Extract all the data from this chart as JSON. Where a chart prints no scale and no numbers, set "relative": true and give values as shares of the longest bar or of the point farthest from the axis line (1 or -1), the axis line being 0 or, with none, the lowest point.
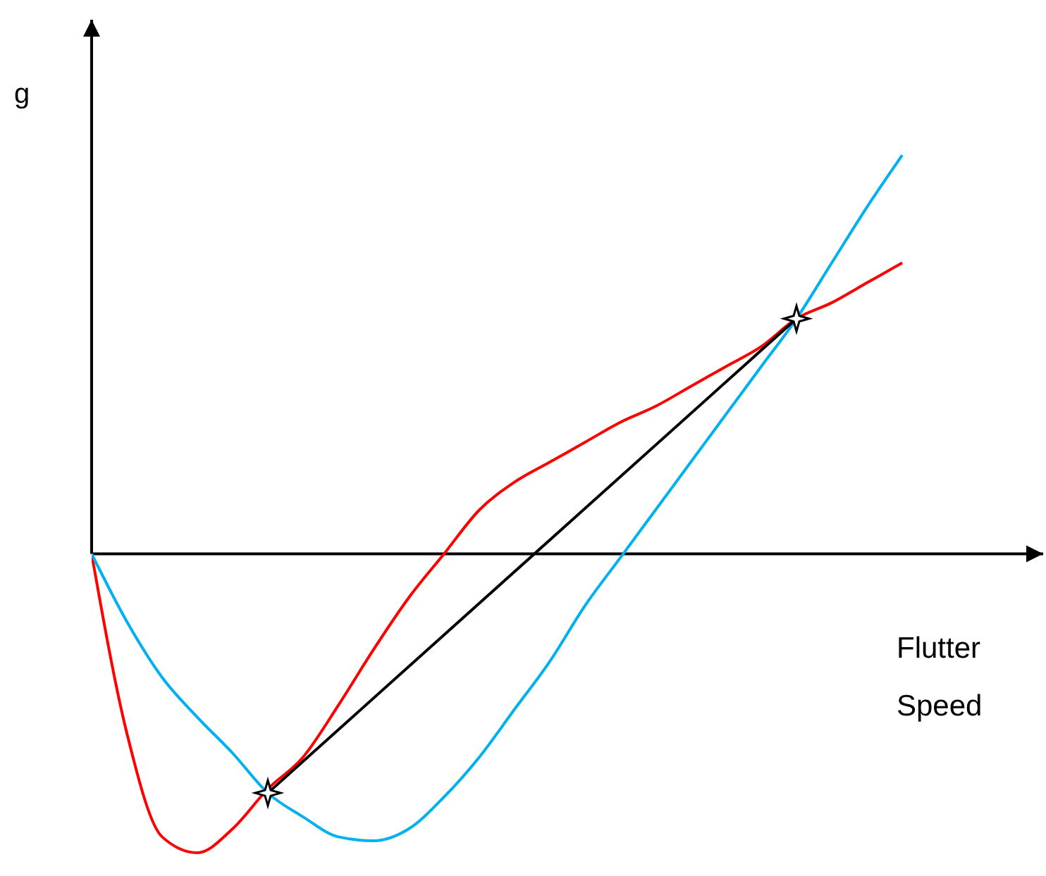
{
  "chart_data": {
    "type": "line",
    "relative": true,
    "xlabel": "Flutter Speed",
    "ylabel": "g",
    "categories": [
      null,
      null,
      null,
      null,
      null,
      null,
      null,
      null,
      null,
      null,
      null,
      null,
      null,
      null,
      null,
      null,
      null,
      null,
      null,
      null,
      null,
      null,
      null,
      null
    ],
    "series": [
      {
        "color": "#ff0000",
        "values": [
          0,
          -0.45,
          -0.71,
          -0.75,
          -0.69,
          -0.59,
          -0.51,
          -0.38,
          -0.24,
          -0.11,
          0,
          0.11,
          0.18,
          0.23,
          0.28,
          0.33,
          0.37,
          0.42,
          0.47,
          0.52,
          0.59,
          0.63,
          0.68,
          0.73
        ]
      },
      {
        "color": "#00b0f0",
        "values": [
          0,
          -0.17,
          -0.31,
          -0.41,
          -0.5,
          -0.6,
          -0.66,
          -0.71,
          -0.72,
          -0.69,
          -0.61,
          -0.51,
          -0.39,
          -0.27,
          -0.13,
          -0.01,
          0.11,
          0.23,
          0.35,
          0.47,
          0.59,
          0.73,
          0.87,
          1
        ]
      },
      {
        "type": "line",
        "color": "#000000",
        "marker": "star",
        "values": [
          null,
          null,
          null,
          null,
          null,
          -0.6,
          null,
          null,
          null,
          null,
          null,
          null,
          null,
          null,
          null,
          null,
          null,
          null,
          null,
          null,
          0.59,
          null,
          null,
          null
        ]
      }
    ]
  }
}
